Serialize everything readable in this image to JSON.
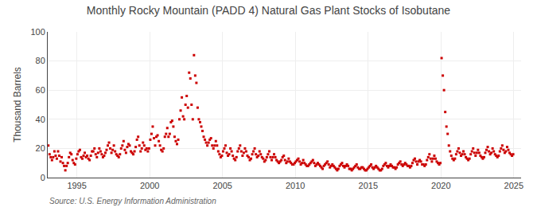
{
  "chart_data": {
    "type": "scatter",
    "title": "Monthly Rocky Mountain (PADD 4) Natural Gas Plant Stocks of Isobutane",
    "ylabel": "Thousand Barrels",
    "source": "Source: U.S. Energy Information Administration",
    "color": "#cc0000",
    "marker": "square",
    "grid": true,
    "xlim": [
      1993.0,
      2025.5
    ],
    "ylim": [
      0,
      100
    ],
    "xticks": [
      1995,
      2000,
      2005,
      2010,
      2015,
      2020,
      2025
    ],
    "yticks": [
      0,
      20,
      40,
      60,
      80,
      100
    ],
    "x": [
      1993.0416666666667,
      1993.125,
      1993.2083333333333,
      1993.2916666666667,
      1993.375,
      1993.4583333333333,
      1993.5416666666667,
      1993.625,
      1993.7083333333333,
      1993.7916666666667,
      1993.875,
      1993.9583333333333,
      1994.0416666666667,
      1994.125,
      1994.2083333333333,
      1994.2916666666667,
      1994.375,
      1994.4583333333333,
      1994.5416666666667,
      1994.625,
      1994.7083333333333,
      1994.7916666666667,
      1994.875,
      1994.9583333333333,
      1995.0416666666667,
      1995.125,
      1995.2083333333333,
      1995.2916666666667,
      1995.375,
      1995.4583333333333,
      1995.5416666666667,
      1995.625,
      1995.7083333333333,
      1995.7916666666667,
      1995.875,
      1995.9583333333333,
      1996.0416666666667,
      1996.125,
      1996.2083333333333,
      1996.2916666666667,
      1996.375,
      1996.4583333333333,
      1996.5416666666667,
      1996.625,
      1996.7083333333333,
      1996.7916666666667,
      1996.875,
      1996.9583333333333,
      1997.0416666666667,
      1997.125,
      1997.2083333333333,
      1997.2916666666667,
      1997.375,
      1997.4583333333333,
      1997.5416666666667,
      1997.625,
      1997.7083333333333,
      1997.7916666666667,
      1997.875,
      1997.9583333333333,
      1998.0416666666667,
      1998.125,
      1998.2083333333333,
      1998.2916666666667,
      1998.375,
      1998.4583333333333,
      1998.5416666666667,
      1998.625,
      1998.7083333333333,
      1998.7916666666667,
      1998.875,
      1998.9583333333333,
      1999.0416666666667,
      1999.125,
      1999.2083333333333,
      1999.2916666666667,
      1999.375,
      1999.4583333333333,
      1999.5416666666667,
      1999.625,
      1999.7083333333333,
      1999.7916666666667,
      1999.875,
      1999.9583333333333,
      2000.0416666666667,
      2000.125,
      2000.2083333333333,
      2000.2916666666667,
      2000.375,
      2000.4583333333333,
      2000.5416666666667,
      2000.625,
      2000.7083333333333,
      2000.7916666666667,
      2000.875,
      2000.9583333333333,
      2001.0416666666667,
      2001.125,
      2001.2083333333333,
      2001.2916666666667,
      2001.375,
      2001.4583333333333,
      2001.5416666666667,
      2001.625,
      2001.7083333333333,
      2001.7916666666667,
      2001.875,
      2001.9583333333333,
      2002.0416666666667,
      2002.125,
      2002.2083333333333,
      2002.2916666666667,
      2002.375,
      2002.4583333333333,
      2002.5416666666667,
      2002.625,
      2002.7083333333333,
      2002.7916666666667,
      2002.875,
      2002.9583333333333,
      2003.0416666666667,
      2003.125,
      2003.2083333333333,
      2003.2916666666667,
      2003.375,
      2003.4583333333333,
      2003.5416666666667,
      2003.625,
      2003.7083333333333,
      2003.7916666666667,
      2003.875,
      2003.9583333333333,
      2004.0416666666667,
      2004.125,
      2004.2083333333333,
      2004.2916666666667,
      2004.375,
      2004.4583333333333,
      2004.5416666666667,
      2004.625,
      2004.7083333333333,
      2004.7916666666667,
      2004.875,
      2004.9583333333333,
      2005.0416666666667,
      2005.125,
      2005.2083333333333,
      2005.2916666666667,
      2005.375,
      2005.4583333333333,
      2005.5416666666667,
      2005.625,
      2005.7083333333333,
      2005.7916666666667,
      2005.875,
      2005.9583333333333,
      2006.0416666666667,
      2006.125,
      2006.2083333333333,
      2006.2916666666667,
      2006.375,
      2006.4583333333333,
      2006.5416666666667,
      2006.625,
      2006.7083333333333,
      2006.7916666666667,
      2006.875,
      2006.9583333333333,
      2007.0416666666667,
      2007.125,
      2007.2083333333333,
      2007.2916666666667,
      2007.375,
      2007.4583333333333,
      2007.5416666666667,
      2007.625,
      2007.7083333333333,
      2007.7916666666667,
      2007.875,
      2007.9583333333333,
      2008.0416666666667,
      2008.125,
      2008.2083333333333,
      2008.2916666666667,
      2008.375,
      2008.4583333333333,
      2008.5416666666667,
      2008.625,
      2008.7083333333333,
      2008.7916666666667,
      2008.875,
      2008.9583333333333,
      2009.0416666666667,
      2009.125,
      2009.2083333333333,
      2009.2916666666667,
      2009.375,
      2009.4583333333333,
      2009.5416666666667,
      2009.625,
      2009.7083333333333,
      2009.7916666666667,
      2009.875,
      2009.9583333333333,
      2010.0416666666667,
      2010.125,
      2010.2083333333333,
      2010.2916666666667,
      2010.375,
      2010.4583333333333,
      2010.5416666666667,
      2010.625,
      2010.7083333333333,
      2010.7916666666667,
      2010.875,
      2010.9583333333333,
      2011.0416666666667,
      2011.125,
      2011.2083333333333,
      2011.2916666666667,
      2011.375,
      2011.4583333333333,
      2011.5416666666667,
      2011.625,
      2011.7083333333333,
      2011.7916666666667,
      2011.875,
      2011.9583333333333,
      2012.0416666666667,
      2012.125,
      2012.2083333333333,
      2012.2916666666667,
      2012.375,
      2012.4583333333333,
      2012.5416666666667,
      2012.625,
      2012.7083333333333,
      2012.7916666666667,
      2012.875,
      2012.9583333333333,
      2013.0416666666667,
      2013.125,
      2013.2083333333333,
      2013.2916666666667,
      2013.375,
      2013.4583333333333,
      2013.5416666666667,
      2013.625,
      2013.7083333333333,
      2013.7916666666667,
      2013.875,
      2013.9583333333333,
      2014.0416666666667,
      2014.125,
      2014.2083333333333,
      2014.2916666666667,
      2014.375,
      2014.4583333333333,
      2014.5416666666667,
      2014.625,
      2014.7083333333333,
      2014.7916666666667,
      2014.875,
      2014.9583333333333,
      2015.0416666666667,
      2015.125,
      2015.2083333333333,
      2015.2916666666667,
      2015.375,
      2015.4583333333333,
      2015.5416666666667,
      2015.625,
      2015.7083333333333,
      2015.7916666666667,
      2015.875,
      2015.9583333333333,
      2016.0416666666667,
      2016.125,
      2016.2083333333333,
      2016.2916666666667,
      2016.375,
      2016.4583333333333,
      2016.5416666666667,
      2016.625,
      2016.7083333333333,
      2016.7916666666667,
      2016.875,
      2016.9583333333333,
      2017.0416666666667,
      2017.125,
      2017.2083333333333,
      2017.2916666666667,
      2017.375,
      2017.4583333333333,
      2017.5416666666667,
      2017.625,
      2017.7083333333333,
      2017.7916666666667,
      2017.875,
      2017.9583333333333,
      2018.0416666666667,
      2018.125,
      2018.2083333333333,
      2018.2916666666667,
      2018.375,
      2018.4583333333333,
      2018.5416666666667,
      2018.625,
      2018.7083333333333,
      2018.7916666666667,
      2018.875,
      2018.9583333333333,
      2019.0416666666667,
      2019.125,
      2019.2083333333333,
      2019.2916666666667,
      2019.375,
      2019.4583333333333,
      2019.5416666666667,
      2019.625,
      2019.7083333333333,
      2019.7916666666667,
      2019.875,
      2019.9583333333333,
      2020.0416666666667,
      2020.125,
      2020.2083333333333,
      2020.2916666666667,
      2020.375,
      2020.4583333333333,
      2020.5416666666667,
      2020.625,
      2020.7083333333333,
      2020.7916666666667,
      2020.875,
      2020.9583333333333,
      2021.0416666666667,
      2021.125,
      2021.2083333333333,
      2021.2916666666667,
      2021.375,
      2021.4583333333333,
      2021.5416666666667,
      2021.625,
      2021.7083333333333,
      2021.7916666666667,
      2021.875,
      2021.9583333333333,
      2022.0416666666667,
      2022.125,
      2022.2083333333333,
      2022.2916666666667,
      2022.375,
      2022.4583333333333,
      2022.5416666666667,
      2022.625,
      2022.7083333333333,
      2022.7916666666667,
      2022.875,
      2022.9583333333333,
      2023.0416666666667,
      2023.125,
      2023.2083333333333,
      2023.2916666666667,
      2023.375,
      2023.4583333333333,
      2023.5416666666667,
      2023.625,
      2023.7083333333333,
      2023.7916666666667,
      2023.875,
      2023.9583333333333,
      2024.0416666666667,
      2024.125,
      2024.2083333333333,
      2024.2916666666667,
      2024.375,
      2024.4583333333333,
      2024.5416666666667,
      2024.625,
      2024.7083333333333,
      2024.7916666666667,
      2024.875,
      2024.9583333333333
    ],
    "values": [
      22,
      16,
      14,
      12,
      14,
      18,
      15,
      13,
      18,
      15,
      11,
      14,
      10,
      8,
      5,
      8,
      10,
      14,
      17,
      16,
      12,
      10,
      9,
      13,
      16,
      18,
      19,
      14,
      13,
      15,
      17,
      14,
      15,
      13,
      12,
      15,
      18,
      18,
      20,
      16,
      14,
      17,
      20,
      18,
      16,
      14,
      15,
      17,
      19,
      22,
      24,
      20,
      17,
      19,
      22,
      18,
      16,
      15,
      14,
      16,
      20,
      22,
      25,
      19,
      17,
      21,
      23,
      22,
      18,
      17,
      16,
      18,
      21,
      26,
      28,
      22,
      18,
      20,
      24,
      22,
      19,
      20,
      18,
      20,
      26,
      30,
      35,
      27,
      22,
      28,
      29,
      25,
      22,
      19,
      18,
      20,
      28,
      30,
      34,
      28,
      30,
      38,
      39,
      35,
      28,
      25,
      23,
      26,
      40,
      46,
      55,
      42,
      40,
      50,
      56,
      48,
      72,
      68,
      50,
      40,
      84,
      70,
      65,
      48,
      40,
      38,
      35,
      32,
      28,
      26,
      24,
      22,
      24,
      26,
      27,
      22,
      20,
      22,
      25,
      22,
      18,
      16,
      14,
      15,
      18,
      20,
      22,
      17,
      15,
      16,
      20,
      18,
      15,
      13,
      12,
      14,
      18,
      20,
      22,
      18,
      15,
      17,
      20,
      18,
      15,
      14,
      12,
      13,
      16,
      18,
      20,
      16,
      14,
      15,
      18,
      16,
      14,
      13,
      11,
      12,
      14,
      16,
      18,
      14,
      12,
      14,
      16,
      14,
      12,
      11,
      10,
      11,
      12,
      14,
      15,
      12,
      10,
      11,
      13,
      11,
      10,
      9,
      9,
      10,
      11,
      12,
      13,
      11,
      9,
      10,
      12,
      10,
      9,
      8,
      8,
      9,
      10,
      11,
      12,
      10,
      8,
      9,
      10,
      9,
      8,
      7,
      6,
      8,
      9,
      10,
      11,
      9,
      7,
      8,
      9,
      8,
      7,
      6,
      5,
      6,
      8,
      9,
      10,
      8,
      7,
      8,
      9,
      8,
      6,
      6,
      5,
      6,
      7,
      8,
      9,
      7,
      6,
      6,
      7,
      7,
      6,
      5,
      5,
      6,
      7,
      8,
      9,
      7,
      6,
      7,
      8,
      7,
      6,
      5,
      5,
      6,
      8,
      9,
      10,
      8,
      7,
      8,
      9,
      8,
      7,
      7,
      6,
      7,
      9,
      10,
      11,
      9,
      8,
      9,
      10,
      9,
      8,
      8,
      7,
      8,
      10,
      12,
      13,
      11,
      9,
      11,
      12,
      11,
      9,
      9,
      8,
      9,
      12,
      14,
      16,
      13,
      11,
      13,
      15,
      13,
      11,
      10,
      9,
      10,
      82,
      70,
      60,
      45,
      35,
      30,
      22,
      18,
      15,
      13,
      12,
      13,
      16,
      18,
      20,
      17,
      15,
      16,
      18,
      16,
      14,
      13,
      12,
      13,
      16,
      18,
      20,
      17,
      15,
      17,
      19,
      17,
      15,
      14,
      13,
      14,
      17,
      19,
      21,
      18,
      16,
      17,
      20,
      18,
      16,
      15,
      14,
      15,
      18,
      20,
      22,
      19,
      17,
      18,
      21,
      19,
      17,
      16,
      15,
      16
    ]
  }
}
